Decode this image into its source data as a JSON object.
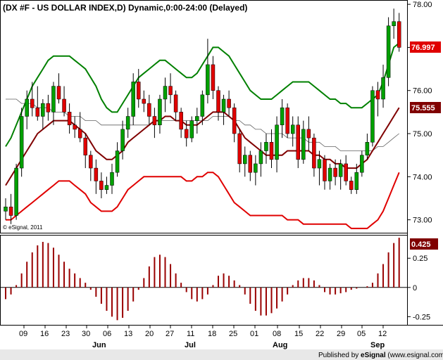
{
  "chart_data": [
    {
      "type": "candlestick",
      "title": "(DX #F - US DOLLAR INDEX,D) Dynamic,0:00-24:00 (Delayed)",
      "ylim": [
        72.7,
        78.1
      ],
      "y_ticks": [
        "73.00",
        "74.00",
        "75.00",
        "76.00",
        "77.00",
        "78.00"
      ],
      "x_ticks": [
        "09",
        "16",
        "23",
        "30",
        "06",
        "13",
        "20",
        "27",
        "11",
        "18",
        "25",
        "01",
        "08",
        "15",
        "22",
        "29",
        "05",
        "12"
      ],
      "months": [
        "Jun",
        "Jul",
        "Aug",
        "Sep"
      ],
      "last_price_label": "76.997",
      "mid_band_label": "75.555",
      "copyright": "© eSignal, 2011",
      "colors": {
        "up": "#00a000",
        "down": "#e00000",
        "upper_band": "#008000",
        "lower_band": "#e00000",
        "mid_band": "#800000",
        "long_ma": "#606060"
      },
      "candles": [
        [
          73.2,
          73.5,
          73.0,
          73.3
        ],
        [
          73.3,
          73.6,
          72.9,
          73.1
        ],
        [
          73.1,
          74.3,
          73.0,
          74.2
        ],
        [
          74.2,
          75.6,
          74.0,
          75.4
        ],
        [
          75.4,
          76.0,
          75.1,
          75.8
        ],
        [
          75.8,
          76.2,
          75.4,
          75.6
        ],
        [
          75.6,
          76.1,
          75.3,
          75.4
        ],
        [
          75.4,
          75.8,
          75.1,
          75.7
        ],
        [
          75.7,
          75.9,
          75.3,
          75.5
        ],
        [
          75.5,
          76.2,
          75.2,
          76.1
        ],
        [
          76.1,
          76.4,
          75.7,
          75.8
        ],
        [
          75.8,
          76.1,
          75.4,
          75.5
        ],
        [
          75.5,
          75.7,
          75.0,
          75.2
        ],
        [
          75.2,
          75.4,
          74.9,
          75.1
        ],
        [
          75.1,
          75.5,
          74.8,
          74.9
        ],
        [
          74.9,
          75.0,
          74.2,
          74.5
        ],
        [
          74.5,
          74.6,
          73.9,
          74.2
        ],
        [
          74.2,
          74.4,
          73.6,
          73.9
        ],
        [
          73.9,
          74.1,
          73.5,
          73.7
        ],
        [
          73.7,
          74.0,
          73.6,
          73.8
        ],
        [
          73.8,
          74.3,
          73.6,
          74.1
        ],
        [
          74.1,
          74.8,
          74.0,
          74.6
        ],
        [
          74.6,
          75.3,
          74.4,
          75.1
        ],
        [
          75.1,
          75.6,
          74.9,
          75.4
        ],
        [
          75.4,
          76.4,
          75.2,
          76.2
        ],
        [
          76.2,
          76.5,
          75.6,
          75.8
        ],
        [
          75.8,
          76.0,
          75.5,
          75.7
        ],
        [
          75.7,
          75.9,
          75.2,
          75.4
        ],
        [
          75.4,
          75.6,
          74.9,
          75.2
        ],
        [
          75.2,
          75.9,
          75.0,
          75.8
        ],
        [
          75.8,
          76.3,
          75.5,
          76.1
        ],
        [
          76.1,
          76.4,
          75.7,
          75.9
        ],
        [
          75.9,
          76.0,
          75.3,
          75.5
        ],
        [
          75.5,
          75.6,
          74.9,
          75.1
        ],
        [
          75.1,
          75.3,
          74.7,
          74.9
        ],
        [
          74.9,
          75.4,
          74.8,
          75.3
        ],
        [
          75.3,
          75.6,
          75.0,
          75.4
        ],
        [
          75.4,
          76.0,
          75.2,
          75.9
        ],
        [
          75.9,
          77.2,
          75.7,
          76.6
        ],
        [
          76.6,
          76.8,
          75.8,
          76.0
        ],
        [
          76.0,
          76.1,
          75.3,
          75.5
        ],
        [
          75.5,
          75.9,
          75.2,
          75.8
        ],
        [
          75.8,
          76.0,
          75.4,
          75.6
        ],
        [
          75.6,
          75.7,
          74.8,
          75.0
        ],
        [
          75.0,
          75.1,
          74.1,
          74.3
        ],
        [
          74.3,
          74.7,
          74.0,
          74.5
        ],
        [
          74.5,
          74.6,
          73.9,
          74.1
        ],
        [
          74.1,
          74.5,
          73.8,
          74.3
        ],
        [
          74.3,
          74.8,
          74.0,
          74.6
        ],
        [
          74.6,
          75.0,
          74.3,
          74.8
        ],
        [
          74.8,
          75.1,
          74.2,
          74.4
        ],
        [
          74.4,
          75.4,
          74.1,
          75.2
        ],
        [
          75.2,
          75.8,
          74.9,
          75.6
        ],
        [
          75.6,
          75.7,
          74.9,
          75.0
        ],
        [
          75.0,
          75.4,
          74.7,
          75.2
        ],
        [
          75.2,
          75.4,
          74.2,
          74.4
        ],
        [
          74.4,
          75.3,
          74.3,
          75.1
        ],
        [
          75.1,
          75.4,
          74.6,
          74.9
        ],
        [
          74.9,
          75.0,
          74.0,
          74.2
        ],
        [
          74.2,
          74.6,
          73.8,
          74.4
        ],
        [
          74.4,
          74.5,
          73.7,
          73.9
        ],
        [
          73.9,
          74.3,
          73.7,
          74.2
        ],
        [
          74.2,
          74.4,
          73.8,
          74.0
        ],
        [
          74.0,
          74.4,
          73.7,
          74.3
        ],
        [
          74.3,
          74.5,
          73.8,
          73.9
        ],
        [
          73.9,
          74.0,
          73.6,
          73.7
        ],
        [
          73.7,
          74.3,
          73.6,
          74.1
        ],
        [
          74.1,
          74.6,
          74.0,
          74.5
        ],
        [
          74.5,
          75.0,
          74.4,
          74.8
        ],
        [
          74.8,
          76.1,
          74.7,
          76.0
        ],
        [
          76.0,
          76.2,
          75.4,
          75.8
        ],
        [
          75.8,
          76.6,
          75.6,
          76.3
        ],
        [
          76.3,
          77.7,
          76.1,
          77.5
        ],
        [
          77.5,
          77.9,
          77.2,
          77.6
        ],
        [
          77.6,
          77.8,
          76.9,
          77.0
        ]
      ],
      "upper_band": [
        74.7,
        74.9,
        75.2,
        75.5,
        75.8,
        76.1,
        76.3,
        76.5,
        76.7,
        76.8,
        76.8,
        76.8,
        76.8,
        76.7,
        76.6,
        76.5,
        76.3,
        76.1,
        75.8,
        75.6,
        75.5,
        75.5,
        75.7,
        75.9,
        76.1,
        76.3,
        76.4,
        76.5,
        76.6,
        76.7,
        76.7,
        76.6,
        76.5,
        76.4,
        76.3,
        76.3,
        76.4,
        76.6,
        76.8,
        77.0,
        77.0,
        76.9,
        76.8,
        76.6,
        76.4,
        76.2,
        76.0,
        75.9,
        75.8,
        75.8,
        75.8,
        75.9,
        76.0,
        76.1,
        76.2,
        76.2,
        76.2,
        76.2,
        76.1,
        76.0,
        75.9,
        75.8,
        75.8,
        75.7,
        75.7,
        75.6,
        75.6,
        75.6,
        75.7,
        75.8,
        75.9,
        76.2,
        76.6,
        77.0,
        77.1
      ],
      "lower_band": [
        73.0,
        73.0,
        73.1,
        73.2,
        73.3,
        73.4,
        73.5,
        73.6,
        73.7,
        73.8,
        73.9,
        73.9,
        73.9,
        73.8,
        73.7,
        73.6,
        73.4,
        73.3,
        73.2,
        73.2,
        73.2,
        73.3,
        73.5,
        73.7,
        73.8,
        73.9,
        74.0,
        74.0,
        74.0,
        74.0,
        74.0,
        74.0,
        74.0,
        74.0,
        73.9,
        73.9,
        74.0,
        74.0,
        74.1,
        74.1,
        74.0,
        73.8,
        73.6,
        73.4,
        73.3,
        73.2,
        73.1,
        73.1,
        73.1,
        73.1,
        73.1,
        73.1,
        73.1,
        73.0,
        73.0,
        73.0,
        72.9,
        72.9,
        72.9,
        72.9,
        72.9,
        72.9,
        72.9,
        72.9,
        72.9,
        72.8,
        72.8,
        72.8,
        72.8,
        72.9,
        73.0,
        73.2,
        73.5,
        73.8,
        74.1
      ],
      "mid_band": [
        73.8,
        74.0,
        74.2,
        74.4,
        74.6,
        74.8,
        75.0,
        75.1,
        75.2,
        75.3,
        75.3,
        75.3,
        75.3,
        75.2,
        75.1,
        75.0,
        74.8,
        74.6,
        74.5,
        74.4,
        74.4,
        74.5,
        74.6,
        74.8,
        74.9,
        75.0,
        75.1,
        75.2,
        75.3,
        75.3,
        75.4,
        75.4,
        75.3,
        75.3,
        75.2,
        75.2,
        75.2,
        75.3,
        75.4,
        75.5,
        75.5,
        75.5,
        75.4,
        75.3,
        75.1,
        74.9,
        74.8,
        74.7,
        74.6,
        74.5,
        74.5,
        74.5,
        74.5,
        74.6,
        74.6,
        74.6,
        74.6,
        74.6,
        74.5,
        74.5,
        74.4,
        74.4,
        74.3,
        74.3,
        74.2,
        74.2,
        74.2,
        74.3,
        74.4,
        74.6,
        74.8,
        75.0,
        75.2,
        75.4,
        75.6
      ],
      "long_ma": [
        75.8,
        75.8,
        75.8,
        75.7,
        75.7,
        75.7,
        75.6,
        75.6,
        75.6,
        75.5,
        75.5,
        75.5,
        75.4,
        75.4,
        75.4,
        75.3,
        75.3,
        75.3,
        75.2,
        75.2,
        75.2,
        75.2,
        75.2,
        75.2,
        75.2,
        75.2,
        75.2,
        75.2,
        75.3,
        75.3,
        75.3,
        75.3,
        75.3,
        75.3,
        75.3,
        75.3,
        75.3,
        75.3,
        75.3,
        75.4,
        75.4,
        75.4,
        75.4,
        75.3,
        75.3,
        75.2,
        75.2,
        75.1,
        75.1,
        75.0,
        75.0,
        75.0,
        75.0,
        74.9,
        74.9,
        74.9,
        74.9,
        74.8,
        74.8,
        74.8,
        74.7,
        74.7,
        74.7,
        74.6,
        74.6,
        74.6,
        74.6,
        74.6,
        74.6,
        74.6,
        74.7,
        74.7,
        74.8,
        74.9,
        75.0
      ]
    },
    {
      "type": "bar",
      "title": "",
      "ylim": [
        -0.32,
        0.45
      ],
      "y_ticks": [
        "-0.25",
        "0",
        "0.25"
      ],
      "last_value_label": "0.425",
      "values": [
        -0.1,
        -0.06,
        0.02,
        0.12,
        0.22,
        0.3,
        0.36,
        0.39,
        0.38,
        0.34,
        0.28,
        0.22,
        0.16,
        0.12,
        0.08,
        0.04,
        -0.02,
        -0.08,
        -0.14,
        -0.2,
        -0.25,
        -0.28,
        -0.26,
        -0.2,
        -0.12,
        -0.02,
        0.08,
        0.18,
        0.26,
        0.28,
        0.26,
        0.2,
        0.12,
        0.04,
        -0.04,
        -0.1,
        -0.12,
        -0.1,
        -0.06,
        0.02,
        0.1,
        0.12,
        0.1,
        0.06,
        0.02,
        -0.06,
        -0.14,
        -0.2,
        -0.24,
        -0.24,
        -0.22,
        -0.18,
        -0.12,
        -0.06,
        0.02,
        0.06,
        0.08,
        0.08,
        0.06,
        0.02,
        -0.04,
        -0.06,
        -0.06,
        -0.05,
        -0.04,
        -0.02,
        -0.01,
        0.0,
        0.01,
        0.04,
        0.12,
        0.2,
        0.3,
        0.38,
        0.425
      ]
    }
  ],
  "footer": {
    "text": "Published by eSignal (www.esignal.com)",
    "brand_left": "Published by ",
    "brand_name": "eSignal",
    "brand_right": " (www.esignal.com)"
  }
}
